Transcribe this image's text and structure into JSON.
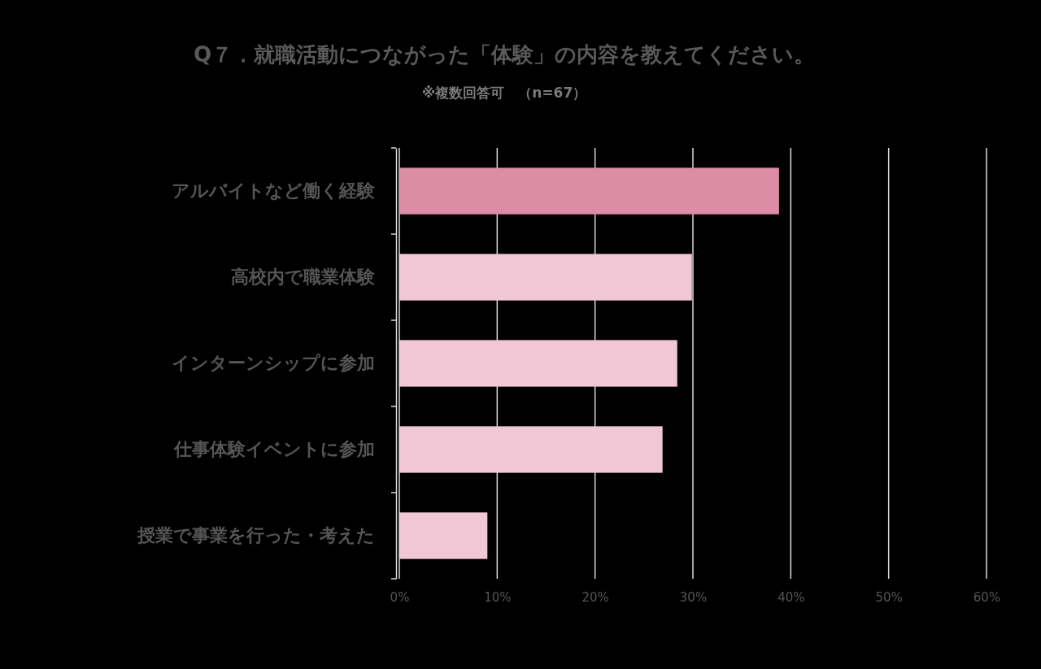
{
  "chart_data": {
    "type": "bar",
    "orientation": "horizontal",
    "title": "Q７．就職活動につながった「体験」の内容を教えてください。",
    "subtitle": "※複数回答可　（n=67）",
    "categories": [
      "アルバイトなど働く経験",
      "高校内で職業体験",
      "インターンシップに参加",
      "仕事体験イベントに参加",
      "授業で事業を行った・考えた"
    ],
    "values": [
      38.8,
      29.9,
      28.4,
      26.9,
      9.0
    ],
    "colors": [
      "#dc8ca5",
      "#f0c8d5",
      "#f0c8d5",
      "#f0c8d5",
      "#f0c8d5"
    ],
    "xlim": [
      0,
      60
    ],
    "xticks": [
      {
        "value": 0,
        "label": "0%"
      },
      {
        "value": 10,
        "label": "10%"
      },
      {
        "value": 20,
        "label": "20%"
      },
      {
        "value": 30,
        "label": "30%"
      },
      {
        "value": 40,
        "label": "40%"
      },
      {
        "value": 50,
        "label": "50%"
      },
      {
        "value": 60,
        "label": "60%"
      }
    ],
    "grid": "x"
  }
}
